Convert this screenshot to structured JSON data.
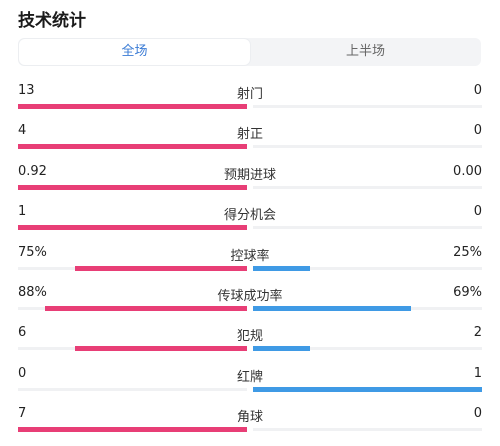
{
  "title": "技术统计",
  "tabs": [
    {
      "label": "全场",
      "active": true
    },
    {
      "label": "上半场",
      "active": false
    }
  ],
  "colors": {
    "home": "#e83e76",
    "away": "#3f9ae5",
    "active_tab": "#3a7bd5"
  },
  "stats": [
    {
      "label": "射门",
      "left": "13",
      "right": "0",
      "left_ratio": 1.0,
      "right_ratio": 0.0
    },
    {
      "label": "射正",
      "left": "4",
      "right": "0",
      "left_ratio": 1.0,
      "right_ratio": 0.0
    },
    {
      "label": "预期进球",
      "left": "0.92",
      "right": "0.00",
      "left_ratio": 1.0,
      "right_ratio": 0.0
    },
    {
      "label": "得分机会",
      "left": "1",
      "right": "0",
      "left_ratio": 1.0,
      "right_ratio": 0.0
    },
    {
      "label": "控球率",
      "left": "75%",
      "right": "25%",
      "left_ratio": 0.75,
      "right_ratio": 0.25
    },
    {
      "label": "传球成功率",
      "left": "88%",
      "right": "69%",
      "left_ratio": 0.88,
      "right_ratio": 0.69
    },
    {
      "label": "犯规",
      "left": "6",
      "right": "2",
      "left_ratio": 0.75,
      "right_ratio": 0.25
    },
    {
      "label": "红牌",
      "left": "0",
      "right": "1",
      "left_ratio": 0.0,
      "right_ratio": 1.0
    },
    {
      "label": "角球",
      "left": "7",
      "right": "0",
      "left_ratio": 1.0,
      "right_ratio": 0.0
    }
  ]
}
